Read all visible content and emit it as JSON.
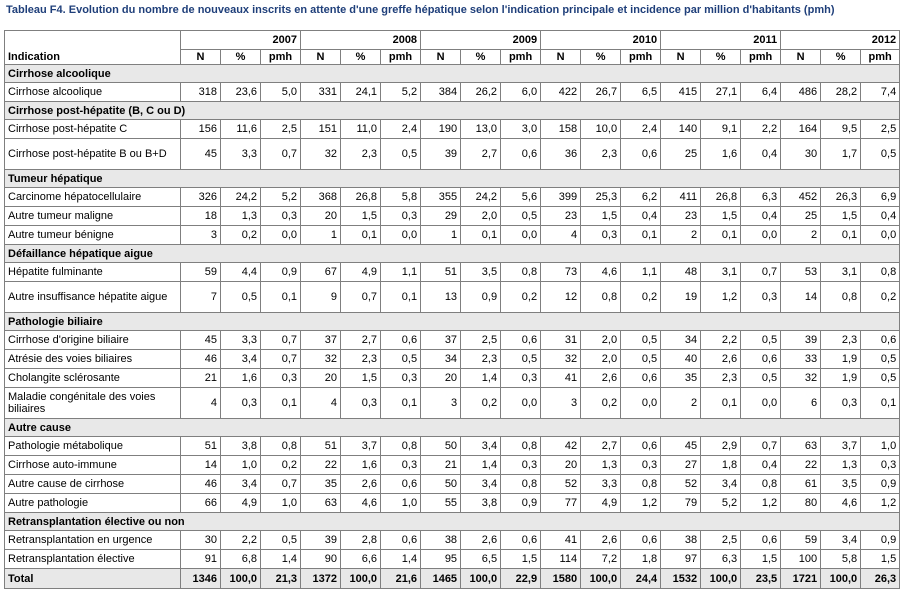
{
  "title": "Tableau F4. Evolution du nombre de nouveaux inscrits en attente d'une greffe hépatique selon l'indication principale et incidence par million d'habitants (pmh)",
  "header": {
    "indication_label": "Indication",
    "years": [
      "2007",
      "2008",
      "2009",
      "2010",
      "2011",
      "2012"
    ],
    "subcols": [
      "N",
      "%",
      "pmh"
    ]
  },
  "groups": [
    {
      "name": "Cirrhose alcoolique",
      "rows": [
        {
          "label": "Cirrhose alcoolique",
          "values": [
            "318",
            "23,6",
            "5,0",
            "331",
            "24,1",
            "5,2",
            "384",
            "26,2",
            "6,0",
            "422",
            "26,7",
            "6,5",
            "415",
            "27,1",
            "6,4",
            "486",
            "28,2",
            "7,4"
          ]
        }
      ]
    },
    {
      "name": "Cirrhose post-hépatite (B, C ou D)",
      "rows": [
        {
          "label": "Cirrhose post-hépatite C",
          "values": [
            "156",
            "11,6",
            "2,5",
            "151",
            "11,0",
            "2,4",
            "190",
            "13,0",
            "3,0",
            "158",
            "10,0",
            "2,4",
            "140",
            "9,1",
            "2,2",
            "164",
            "9,5",
            "2,5"
          ]
        },
        {
          "label": "Cirrhose post-hépatite B ou B+D",
          "tall": true,
          "values": [
            "45",
            "3,3",
            "0,7",
            "32",
            "2,3",
            "0,5",
            "39",
            "2,7",
            "0,6",
            "36",
            "2,3",
            "0,6",
            "25",
            "1,6",
            "0,4",
            "30",
            "1,7",
            "0,5"
          ]
        }
      ]
    },
    {
      "name": "Tumeur hépatique",
      "rows": [
        {
          "label": "Carcinome hépatocellulaire",
          "values": [
            "326",
            "24,2",
            "5,2",
            "368",
            "26,8",
            "5,8",
            "355",
            "24,2",
            "5,6",
            "399",
            "25,3",
            "6,2",
            "411",
            "26,8",
            "6,3",
            "452",
            "26,3",
            "6,9"
          ]
        },
        {
          "label": "Autre tumeur maligne",
          "values": [
            "18",
            "1,3",
            "0,3",
            "20",
            "1,5",
            "0,3",
            "29",
            "2,0",
            "0,5",
            "23",
            "1,5",
            "0,4",
            "23",
            "1,5",
            "0,4",
            "25",
            "1,5",
            "0,4"
          ]
        },
        {
          "label": "Autre tumeur bénigne",
          "values": [
            "3",
            "0,2",
            "0,0",
            "1",
            "0,1",
            "0,0",
            "1",
            "0,1",
            "0,0",
            "4",
            "0,3",
            "0,1",
            "2",
            "0,1",
            "0,0",
            "2",
            "0,1",
            "0,0"
          ]
        }
      ]
    },
    {
      "name": "Défaillance hépatique aigue",
      "rows": [
        {
          "label": "Hépatite fulminante",
          "values": [
            "59",
            "4,4",
            "0,9",
            "67",
            "4,9",
            "1,1",
            "51",
            "3,5",
            "0,8",
            "73",
            "4,6",
            "1,1",
            "48",
            "3,1",
            "0,7",
            "53",
            "3,1",
            "0,8"
          ]
        },
        {
          "label": "Autre insuffisance hépatite aigue",
          "tall": true,
          "values": [
            "7",
            "0,5",
            "0,1",
            "9",
            "0,7",
            "0,1",
            "13",
            "0,9",
            "0,2",
            "12",
            "0,8",
            "0,2",
            "19",
            "1,2",
            "0,3",
            "14",
            "0,8",
            "0,2"
          ]
        }
      ]
    },
    {
      "name": "Pathologie biliaire",
      "rows": [
        {
          "label": "Cirrhose d'origine biliaire",
          "values": [
            "45",
            "3,3",
            "0,7",
            "37",
            "2,7",
            "0,6",
            "37",
            "2,5",
            "0,6",
            "31",
            "2,0",
            "0,5",
            "34",
            "2,2",
            "0,5",
            "39",
            "2,3",
            "0,6"
          ]
        },
        {
          "label": "Atrésie des voies biliaires",
          "values": [
            "46",
            "3,4",
            "0,7",
            "32",
            "2,3",
            "0,5",
            "34",
            "2,3",
            "0,5",
            "32",
            "2,0",
            "0,5",
            "40",
            "2,6",
            "0,6",
            "33",
            "1,9",
            "0,5"
          ]
        },
        {
          "label": "Cholangite sclérosante",
          "values": [
            "21",
            "1,6",
            "0,3",
            "20",
            "1,5",
            "0,3",
            "20",
            "1,4",
            "0,3",
            "41",
            "2,6",
            "0,6",
            "35",
            "2,3",
            "0,5",
            "32",
            "1,9",
            "0,5"
          ]
        },
        {
          "label": "Maladie congénitale des voies biliaires",
          "tall": true,
          "values": [
            "4",
            "0,3",
            "0,1",
            "4",
            "0,3",
            "0,1",
            "3",
            "0,2",
            "0,0",
            "3",
            "0,2",
            "0,0",
            "2",
            "0,1",
            "0,0",
            "6",
            "0,3",
            "0,1"
          ]
        }
      ]
    },
    {
      "name": "Autre cause",
      "rows": [
        {
          "label": "Pathologie métabolique",
          "values": [
            "51",
            "3,8",
            "0,8",
            "51",
            "3,7",
            "0,8",
            "50",
            "3,4",
            "0,8",
            "42",
            "2,7",
            "0,6",
            "45",
            "2,9",
            "0,7",
            "63",
            "3,7",
            "1,0"
          ]
        },
        {
          "label": "Cirrhose auto-immune",
          "values": [
            "14",
            "1,0",
            "0,2",
            "22",
            "1,6",
            "0,3",
            "21",
            "1,4",
            "0,3",
            "20",
            "1,3",
            "0,3",
            "27",
            "1,8",
            "0,4",
            "22",
            "1,3",
            "0,3"
          ]
        },
        {
          "label": "Autre cause de cirrhose",
          "values": [
            "46",
            "3,4",
            "0,7",
            "35",
            "2,6",
            "0,6",
            "50",
            "3,4",
            "0,8",
            "52",
            "3,3",
            "0,8",
            "52",
            "3,4",
            "0,8",
            "61",
            "3,5",
            "0,9"
          ]
        },
        {
          "label": "Autre pathologie",
          "values": [
            "66",
            "4,9",
            "1,0",
            "63",
            "4,6",
            "1,0",
            "55",
            "3,8",
            "0,9",
            "77",
            "4,9",
            "1,2",
            "79",
            "5,2",
            "1,2",
            "80",
            "4,6",
            "1,2"
          ]
        }
      ]
    },
    {
      "name": "Retransplantation élective ou non",
      "rows": [
        {
          "label": "Retransplantation en urgence",
          "values": [
            "30",
            "2,2",
            "0,5",
            "39",
            "2,8",
            "0,6",
            "38",
            "2,6",
            "0,6",
            "41",
            "2,6",
            "0,6",
            "38",
            "2,5",
            "0,6",
            "59",
            "3,4",
            "0,9"
          ]
        },
        {
          "label": "Retransplantation élective",
          "values": [
            "91",
            "6,8",
            "1,4",
            "90",
            "6,6",
            "1,4",
            "95",
            "6,5",
            "1,5",
            "114",
            "7,2",
            "1,8",
            "97",
            "6,3",
            "1,5",
            "100",
            "5,8",
            "1,5"
          ]
        }
      ]
    }
  ],
  "total": {
    "label": "Total",
    "values": [
      "1346",
      "100,0",
      "21,3",
      "1372",
      "100,0",
      "21,6",
      "1465",
      "100,0",
      "22,9",
      "1580",
      "100,0",
      "24,4",
      "1532",
      "100,0",
      "23,5",
      "1721",
      "100,0",
      "26,3"
    ]
  }
}
